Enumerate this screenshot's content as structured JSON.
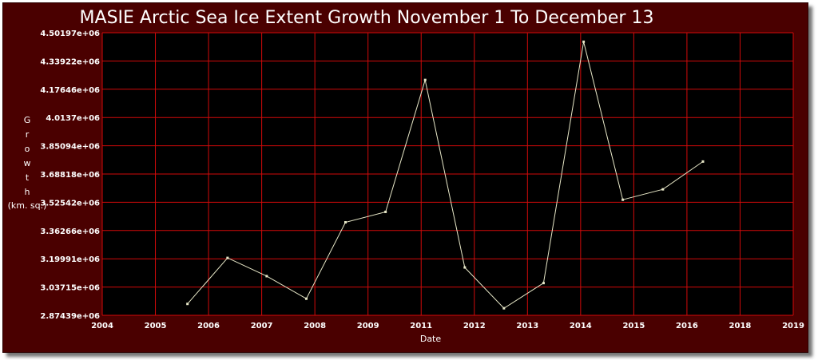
{
  "chart_data": {
    "type": "line",
    "title": "MASIE Arctic Sea Ice Extent Growth November 1 To December 13",
    "xlabel": "Date",
    "ylabel_letters": [
      "G",
      "r",
      "o",
      "w",
      "t",
      "h"
    ],
    "ylabel_unit": "(km. sq.)",
    "x_tick_labels": [
      "2004",
      "2005",
      "2006",
      "2007",
      "2008",
      "2009",
      "2011",
      "2012",
      "2013",
      "2014",
      "2015",
      "2016",
      "2018",
      "2019"
    ],
    "y_tick_labels": [
      "4.50197e+06",
      "4.33922e+06",
      "4.17646e+06",
      "4.0137e+06",
      "3.85094e+06",
      "3.68818e+06",
      "3.52542e+06",
      "3.36266e+06",
      "3.19991e+06",
      "3.03715e+06",
      "2.87439e+06"
    ],
    "ylim": [
      2874390,
      4501970
    ],
    "x_range": [
      2004,
      2019
    ],
    "grid": true,
    "series": [
      {
        "points": [
          {
            "x": 2005.85,
            "y": 2940000
          },
          {
            "x": 2006.72,
            "y": 3205000
          },
          {
            "x": 2007.57,
            "y": 3100000
          },
          {
            "x": 2008.43,
            "y": 2970000
          },
          {
            "x": 2009.28,
            "y": 3410000
          },
          {
            "x": 2010.15,
            "y": 3470000
          },
          {
            "x": 2011.01,
            "y": 4230000
          },
          {
            "x": 2011.87,
            "y": 3150000
          },
          {
            "x": 2012.72,
            "y": 2915000
          },
          {
            "x": 2013.58,
            "y": 3060000
          },
          {
            "x": 2014.45,
            "y": 4450000
          },
          {
            "x": 2015.3,
            "y": 3540000
          },
          {
            "x": 2016.17,
            "y": 3600000
          },
          {
            "x": 2017.04,
            "y": 3760000
          }
        ]
      }
    ],
    "colors": {
      "background": "#4a0000",
      "plot_area": "#000000",
      "grid": "#d20a0a",
      "line": "#e8e8c8",
      "text": "#ffffff"
    }
  }
}
